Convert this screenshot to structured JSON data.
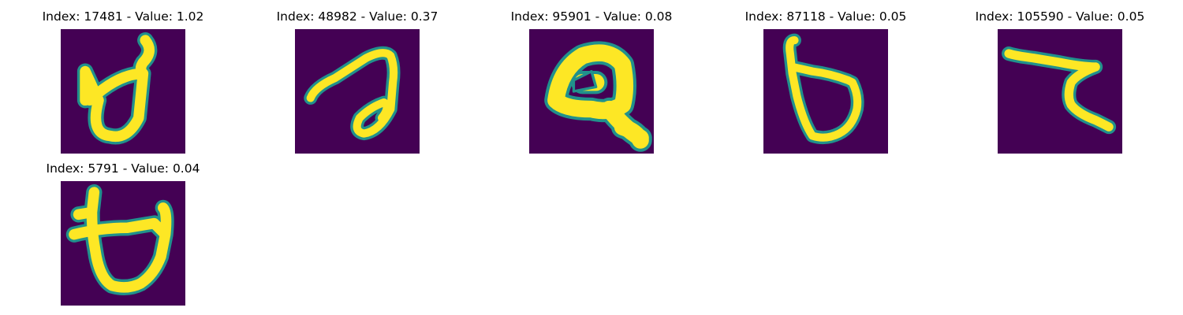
{
  "colors": {
    "background": "#440154",
    "foreground": "#fde725",
    "edge": "#21918c"
  },
  "panels": [
    {
      "title": "Index: 17481 - Value: 1.02",
      "index": 17481,
      "value": 1.02
    },
    {
      "title": "Index: 48982 - Value: 0.37",
      "index": 48982,
      "value": 0.37
    },
    {
      "title": "Index: 95901 - Value: 0.08",
      "index": 95901,
      "value": 0.08
    },
    {
      "title": "Index: 87118 - Value: 0.05",
      "index": 87118,
      "value": 0.05
    },
    {
      "title": "Index: 105590 - Value: 0.05",
      "index": 105590,
      "value": 0.05
    },
    {
      "title": "Index: 5791 - Value: 0.04",
      "index": 5791,
      "value": 0.04
    }
  ]
}
